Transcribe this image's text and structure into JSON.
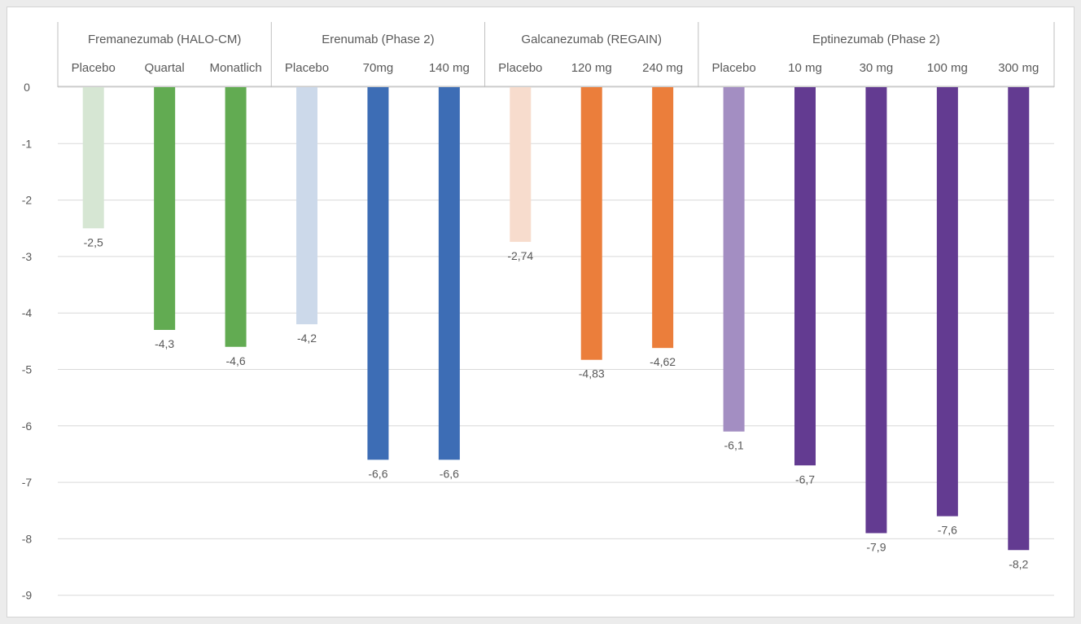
{
  "chart_data": {
    "type": "bar",
    "title": "",
    "xlabel": "",
    "ylabel": "",
    "ylim": [
      -9,
      0
    ],
    "yticks": [
      0,
      -1,
      -2,
      -3,
      -4,
      -5,
      -6,
      -7,
      -8,
      -9
    ],
    "grid": true,
    "legend": "none",
    "groups": [
      {
        "name": "Fremanezumab (HALO-CM)",
        "bars": [
          {
            "label": "Placebo",
            "value": -2.5,
            "value_label": "-2,5",
            "color": "#d6e6d3"
          },
          {
            "label": "Quartal",
            "value": -4.3,
            "value_label": "-4,3",
            "color": "#62ab52"
          },
          {
            "label": "Monatlich",
            "value": -4.6,
            "value_label": "-4,6",
            "color": "#62ab52"
          }
        ]
      },
      {
        "name": "Erenumab (Phase 2)",
        "bars": [
          {
            "label": "Placebo",
            "value": -4.2,
            "value_label": "-4,2",
            "color": "#ccd9ea"
          },
          {
            "label": "70mg",
            "value": -6.6,
            "value_label": "-6,6",
            "color": "#3d6db5"
          },
          {
            "label": "140 mg",
            "value": -6.6,
            "value_label": "-6,6",
            "color": "#3d6db5"
          }
        ]
      },
      {
        "name": "Galcanezumab (REGAIN)",
        "bars": [
          {
            "label": "Placebo",
            "value": -2.74,
            "value_label": "-2,74",
            "color": "#f7dccd"
          },
          {
            "label": "120 mg",
            "value": -4.83,
            "value_label": "-4,83",
            "color": "#eb7e3b"
          },
          {
            "label": "240 mg",
            "value": -4.62,
            "value_label": "-4,62",
            "color": "#eb7e3b"
          }
        ]
      },
      {
        "name": "Eptinezumab (Phase 2)",
        "bars": [
          {
            "label": "Placebo",
            "value": -6.1,
            "value_label": "-6,1",
            "color": "#a38ec2"
          },
          {
            "label": "10 mg",
            "value": -6.7,
            "value_label": "-6,7",
            "color": "#633b91"
          },
          {
            "label": "30 mg",
            "value": -7.9,
            "value_label": "-7,9",
            "color": "#633b91"
          },
          {
            "label": "100 mg",
            "value": -7.6,
            "value_label": "-7,6",
            "color": "#633b91"
          },
          {
            "label": "300 mg",
            "value": -8.2,
            "value_label": "-8,2",
            "color": "#633b91"
          }
        ]
      }
    ]
  }
}
